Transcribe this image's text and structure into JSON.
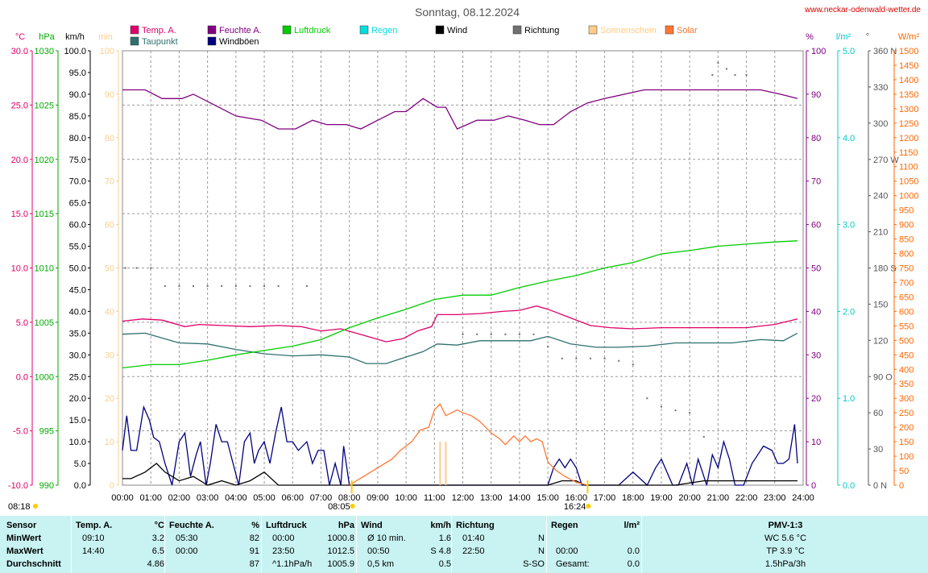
{
  "chart_data": {
    "type": "line",
    "title": "Sonntag, 08.12.2024",
    "website": "www.neckar-odenwald-wetter.de",
    "legend": [
      {
        "label": "Temp. A.",
        "color": "#e0006a"
      },
      {
        "label": "Taupunkt",
        "color": "#2f6f6f"
      },
      {
        "label": "Feuchte A.",
        "color": "#800080"
      },
      {
        "label": "Windböen",
        "color": "#000080"
      },
      {
        "label": "Luftdruck",
        "color": "#00cc00"
      },
      {
        "label": "Regen",
        "color": "#00dddd"
      },
      {
        "label": "Wind",
        "color": "#000000"
      },
      {
        "label": "Richtung",
        "color": "#707070"
      },
      {
        "label": "Sonnenschein",
        "color": "#ffcc88"
      },
      {
        "label": "Solar",
        "color": "#ff7733"
      }
    ],
    "left_axes": [
      {
        "unit": "°C",
        "color": "#e0006a",
        "ticks": [
          "30.0",
          "25.0",
          "20.0",
          "15.0",
          "10.0",
          "5.0",
          "0.0",
          "-5.0",
          "-10.0"
        ]
      },
      {
        "unit": "hPa",
        "color": "#00aa00",
        "ticks": [
          "1030",
          "1025",
          "1020",
          "1015",
          "1010",
          "1005",
          "1000",
          "995",
          "990"
        ]
      },
      {
        "unit": "km/h",
        "color": "#000000",
        "ticks": [
          "100.0",
          "95.0",
          "90.0",
          "85.0",
          "80.0",
          "75.0",
          "70.0",
          "65.0",
          "60.0",
          "55.0",
          "50.0",
          "45.0",
          "40.0",
          "35.0",
          "30.0",
          "25.0",
          "20.0",
          "15.0",
          "10.0",
          "5.0",
          "0.0"
        ]
      },
      {
        "unit": "min",
        "color": "#f5d090",
        "ticks": [
          "100",
          "90",
          "80",
          "70",
          "60",
          "50",
          "40",
          "30",
          "20",
          "10",
          "0"
        ]
      }
    ],
    "right_axes": [
      {
        "unit": "%",
        "color": "#800080",
        "ticks": [
          "100",
          "90",
          "80",
          "70",
          "60",
          "50",
          "40",
          "30",
          "20",
          "10",
          "0"
        ]
      },
      {
        "unit": "l/m²",
        "color": "#00cccc",
        "ticks": [
          "5.0",
          "4.0",
          "3.0",
          "2.0",
          "1.0",
          "0.0"
        ]
      },
      {
        "unit": "°",
        "color": "#555555",
        "ticks": [
          "360 N",
          "330",
          "300",
          "270 W",
          "240",
          "210",
          "180 S",
          "150",
          "120",
          "90 O",
          "60",
          "30",
          "0 N"
        ]
      },
      {
        "unit": "W/m²",
        "color": "#ff6600",
        "ticks": [
          "1500",
          "1450",
          "1400",
          "1350",
          "1300",
          "1250",
          "1200",
          "1150",
          "1100",
          "1050",
          "1000",
          "950",
          "900",
          "850",
          "800",
          "750",
          "700",
          "650",
          "600",
          "550",
          "500",
          "450",
          "400",
          "350",
          "300",
          "250",
          "200",
          "150",
          "100",
          "50",
          "0"
        ]
      }
    ],
    "x_labels": [
      "00:00",
      "01:00",
      "02:00",
      "03:00",
      "04:00",
      "05:00",
      "06:00",
      "07:00",
      "08:00",
      "09:00",
      "10:00",
      "11:00",
      "12:00",
      "13:00",
      "14:00",
      "15:00",
      "16:00",
      "17:00",
      "18:00",
      "19:00",
      "20:00",
      "21:00",
      "22:00",
      "23:00",
      "24:00"
    ],
    "xlim": [
      0,
      24
    ],
    "sunrise": "08:05",
    "sunset": "16:24",
    "prev_sunrise": "08:18",
    "grid": true,
    "series": [
      {
        "name": "Temp. A.",
        "unit": "°C",
        "color": "#e0006a",
        "x": [
          0,
          0.7,
          1.4,
          2.2,
          2.7,
          3.5,
          4.5,
          5.5,
          6.3,
          7.0,
          7.7,
          8.5,
          9.3,
          9.9,
          10.4,
          10.9,
          11.1,
          11.8,
          12.6,
          13.4,
          14.0,
          14.6,
          15.0,
          15.8,
          16.5,
          17.2,
          18.0,
          19.0,
          20.0,
          21.0,
          22.0,
          23.0,
          23.8
        ],
        "y": [
          5.1,
          5.3,
          5.2,
          4.6,
          4.8,
          4.7,
          4.6,
          4.7,
          4.6,
          4.2,
          4.4,
          3.8,
          3.2,
          3.5,
          4.2,
          4.6,
          5.7,
          5.7,
          5.8,
          6.0,
          6.1,
          6.5,
          6.2,
          5.4,
          4.7,
          4.5,
          4.4,
          4.5,
          4.5,
          4.5,
          4.5,
          4.8,
          5.3
        ]
      },
      {
        "name": "Taupunkt",
        "unit": "°C",
        "color": "#2f6f6f",
        "x": [
          0,
          0.8,
          2.0,
          3.0,
          4.0,
          5.0,
          6.0,
          7.0,
          8.0,
          8.6,
          9.3,
          10.0,
          10.6,
          11.1,
          11.8,
          12.6,
          13.5,
          14.4,
          15.0,
          15.8,
          16.7,
          17.5,
          18.5,
          19.5,
          20.5,
          21.5,
          22.5,
          23.3,
          23.8
        ],
        "y": [
          3.9,
          4.0,
          3.1,
          3.0,
          2.5,
          2.1,
          1.9,
          2.0,
          1.8,
          1.2,
          1.2,
          1.8,
          2.3,
          3.0,
          2.9,
          3.3,
          3.3,
          3.3,
          3.7,
          3.0,
          2.7,
          2.7,
          2.8,
          3.1,
          3.1,
          3.1,
          3.4,
          3.3,
          4.0
        ]
      },
      {
        "name": "Feuchte A.",
        "unit": "%",
        "color": "#800080",
        "x": [
          0,
          0.8,
          1.4,
          2.1,
          2.5,
          3.4,
          4.0,
          4.9,
          5.5,
          6.1,
          6.7,
          7.2,
          7.9,
          8.4,
          9.0,
          9.6,
          10.0,
          10.6,
          11.1,
          11.4,
          11.8,
          12.5,
          13.1,
          13.6,
          14.2,
          14.7,
          15.2,
          15.8,
          16.4,
          17.0,
          17.7,
          18.4,
          19.5,
          20.5,
          21.5,
          22.5,
          23.2,
          23.8
        ],
        "y": [
          91,
          91,
          89,
          89,
          90,
          87,
          85,
          84,
          82,
          82,
          84,
          83,
          83,
          82,
          84,
          86,
          86,
          89,
          87,
          87,
          82,
          84,
          84,
          85,
          84,
          83,
          83,
          86,
          88,
          89,
          90,
          91,
          91,
          91,
          91,
          91,
          90,
          89
        ]
      },
      {
        "name": "Luftdruck",
        "unit": "hPa",
        "color": "#00cc00",
        "x": [
          0,
          1,
          2,
          3,
          4,
          5,
          6,
          7,
          8,
          9,
          10,
          11,
          12,
          13,
          14,
          15,
          16,
          17,
          18,
          19,
          20,
          21,
          22,
          23,
          23.8
        ],
        "y": [
          1000.8,
          1001.1,
          1001.1,
          1001.5,
          1002.0,
          1002.4,
          1002.8,
          1003.4,
          1004.5,
          1005.4,
          1006.2,
          1007.1,
          1007.5,
          1007.5,
          1008.2,
          1008.8,
          1009.3,
          1010.0,
          1010.5,
          1011.3,
          1011.6,
          1012.0,
          1012.2,
          1012.4,
          1012.5
        ]
      },
      {
        "name": "Windböen",
        "unit": "km/h",
        "color": "#000080",
        "x": [
          0,
          0.15,
          0.3,
          0.5,
          0.75,
          0.95,
          1.1,
          1.3,
          1.5,
          1.75,
          2.0,
          2.2,
          2.4,
          2.6,
          2.75,
          2.95,
          3.1,
          3.3,
          3.5,
          3.7,
          3.9,
          4.1,
          4.3,
          4.5,
          4.65,
          4.8,
          5.0,
          5.2,
          5.4,
          5.6,
          5.8,
          6.0,
          6.2,
          6.5,
          6.7,
          6.9,
          7.1,
          7.3,
          7.5,
          7.7,
          7.8,
          8.0,
          15.0,
          15.2,
          15.4,
          15.6,
          15.8,
          16.0,
          16.2,
          17.5,
          18.0,
          18.5,
          18.8,
          19.0,
          19.4,
          19.6,
          19.9,
          20.1,
          20.3,
          20.6,
          20.8,
          21.0,
          21.2,
          21.4,
          21.6,
          21.9,
          22.2,
          22.4,
          22.6,
          22.9,
          23.1,
          23.3,
          23.5,
          23.7,
          23.8
        ],
        "y": [
          8,
          16,
          8,
          8,
          18,
          15,
          11,
          10,
          5,
          0,
          10,
          12,
          2,
          7,
          10,
          0,
          5,
          14,
          10,
          10,
          5,
          0,
          10,
          12,
          5,
          8,
          10,
          5,
          12,
          18,
          10,
          10,
          8,
          10,
          5,
          8,
          8,
          0,
          5,
          0,
          9,
          0,
          0,
          4,
          6,
          4,
          6,
          4,
          0,
          0,
          3,
          0,
          4,
          6,
          0,
          0,
          5,
          0,
          6,
          0,
          7,
          4,
          10,
          6,
          0,
          0,
          5,
          7,
          9,
          8,
          5,
          5,
          6,
          14,
          5
        ]
      },
      {
        "name": "Wind",
        "unit": "km/h",
        "color": "#000000",
        "x": [
          0,
          0.3,
          0.8,
          1.2,
          1.5,
          2.0,
          2.5,
          3.0,
          3.5,
          4.0,
          4.5,
          5.0,
          5.5,
          6.0,
          15.0,
          15.5,
          16.0,
          16.3,
          19.5,
          20.5,
          21.5,
          22.5,
          23.0,
          23.8
        ],
        "y": [
          1.5,
          1.5,
          3,
          5,
          3,
          1,
          2,
          0,
          1,
          0,
          1,
          3,
          0,
          0,
          0,
          1,
          1,
          0,
          0,
          1,
          1,
          1,
          1,
          1
        ]
      },
      {
        "name": "Solar",
        "unit": "W/m²",
        "color": "#ff7733",
        "x": [
          8.0,
          8.5,
          9.0,
          9.5,
          9.8,
          10.2,
          10.5,
          10.8,
          11.0,
          11.2,
          11.4,
          11.6,
          11.8,
          12.0,
          12.3,
          12.6,
          12.8,
          13.0,
          13.3,
          13.5,
          13.8,
          14.0,
          14.2,
          14.4,
          14.6,
          14.8,
          15.0,
          15.3,
          15.6,
          16.0,
          16.4
        ],
        "y": [
          0,
          30,
          60,
          90,
          120,
          150,
          190,
          200,
          260,
          280,
          240,
          250,
          260,
          250,
          240,
          220,
          200,
          180,
          160,
          140,
          170,
          150,
          170,
          150,
          160,
          150,
          80,
          50,
          30,
          10,
          0
        ]
      },
      {
        "name": "Richtung",
        "unit": "°",
        "color": "#707070",
        "x": [
          0.1,
          0.5,
          1.0,
          1.5,
          2.0,
          2.5,
          3.0,
          3.5,
          4.0,
          4.5,
          5.0,
          5.5,
          6.5,
          12.0,
          12.5,
          13.0,
          13.5,
          14.0,
          14.5,
          15.0,
          15.5,
          16.0,
          16.5,
          17.0,
          17.5,
          18.0,
          18.5,
          19.0,
          19.5,
          20.0,
          20.5,
          20.8,
          21.0,
          21.3,
          21.6,
          22.0
        ],
        "y": [
          180,
          180,
          180,
          165,
          165,
          165,
          165,
          165,
          165,
          165,
          165,
          165,
          165,
          125,
          125,
          125,
          125,
          125,
          125,
          115,
          105,
          105,
          105,
          105,
          103,
          100,
          72,
          65,
          62,
          60,
          40,
          340,
          350,
          345,
          340,
          340
        ]
      },
      {
        "name": "Sonnenschein",
        "unit": "min",
        "color": "#ffcc88",
        "x": [
          11.2,
          11.4
        ],
        "y": [
          10,
          10
        ]
      }
    ]
  },
  "table": {
    "columns": [
      {
        "title": "Sensor"
      },
      {
        "title": "Temp. A.",
        "unit": "°C"
      },
      {
        "title": "Feuchte A.",
        "unit": "%"
      },
      {
        "title": "Luftdruck",
        "unit": "hPa"
      },
      {
        "title": "Wind",
        "unit": "km/h"
      },
      {
        "title": "Richtung"
      },
      {
        "title": "Regen",
        "unit": "l/m²"
      },
      {
        "title": "PMV-1:3"
      }
    ],
    "rows": [
      {
        "label": "MinWert",
        "temp_t": "09:10",
        "temp_v": "3.2",
        "hum_t": "05:30",
        "hum_v": "82",
        "press_t": "00:00",
        "press_v": "1000.8",
        "wind_t": "Ø 10 min.",
        "wind_v": "1.6",
        "dir_t": "01:40",
        "dir_v": "N",
        "rain_t": "",
        "rain_v": "",
        "pmv": "WC 5.6 °C"
      },
      {
        "label": "MaxWert",
        "temp_t": "14:40",
        "temp_v": "6.5",
        "hum_t": "00:00",
        "hum_v": "91",
        "press_t": "23:50",
        "press_v": "1012.5",
        "wind_t": "00:50",
        "wind_v": "S 4.8",
        "dir_t": "22:50",
        "dir_v": "N",
        "rain_t": "00:00",
        "rain_v": "0.0",
        "pmv": "TP 3.9 °C"
      },
      {
        "label": "Durchschnitt",
        "temp_t": "",
        "temp_v": "4.86",
        "hum_t": "",
        "hum_v": "87",
        "press_t": "^1.1hPa/h",
        "press_v": "1005.9",
        "wind_t": "0,5 km",
        "wind_v": "0.5",
        "dir_t": "",
        "dir_v": "S-SO",
        "rain_t": "Gesamt:",
        "rain_v": "0.0",
        "pmv": "1.5hPa/3h"
      }
    ]
  }
}
